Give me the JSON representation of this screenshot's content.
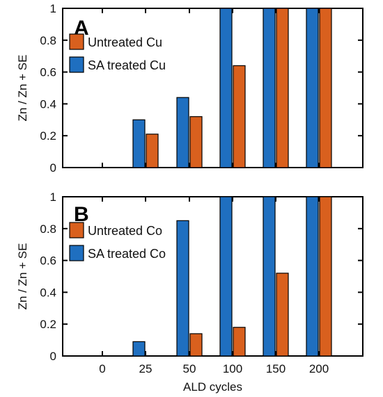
{
  "colors": {
    "blue": "#1f6fc0",
    "orange": "#d9601e",
    "axis": "#000000"
  },
  "xlabel": "ALD cycles",
  "chart_data": [
    {
      "type": "bar",
      "panel": "A",
      "ylabel": "Zn / Zn + SE",
      "ylim": [
        0,
        1
      ],
      "yticks": [
        "0",
        "0.2",
        "0.4",
        "0.6",
        "0.8",
        "1"
      ],
      "categories": [
        "0",
        "25",
        "50",
        "100",
        "150",
        "200"
      ],
      "legend_position": "top-left",
      "series": [
        {
          "name": "Untreated Cu",
          "color": "#d9601e",
          "values": [
            0,
            0.21,
            0.32,
            0.64,
            1.0,
            1.0
          ]
        },
        {
          "name": "SA treated Cu",
          "color": "#1f6fc0",
          "values": [
            0,
            0.3,
            0.44,
            1.0,
            1.0,
            1.0
          ]
        }
      ]
    },
    {
      "type": "bar",
      "panel": "B",
      "ylabel": "Zn / Zn + SE",
      "ylim": [
        0,
        1
      ],
      "yticks": [
        "0",
        "0.2",
        "0.4",
        "0.6",
        "0.8",
        "1"
      ],
      "categories": [
        "0",
        "25",
        "50",
        "100",
        "150",
        "200"
      ],
      "xlabel": "ALD cycles",
      "legend_position": "top-left",
      "series": [
        {
          "name": "Untreated Co",
          "color": "#d9601e",
          "values": [
            0,
            0,
            0.14,
            0.18,
            0.52,
            1.0
          ]
        },
        {
          "name": "SA treated Co",
          "color": "#1f6fc0",
          "values": [
            0,
            0.09,
            0.85,
            1.0,
            1.0,
            1.0
          ]
        }
      ]
    }
  ]
}
